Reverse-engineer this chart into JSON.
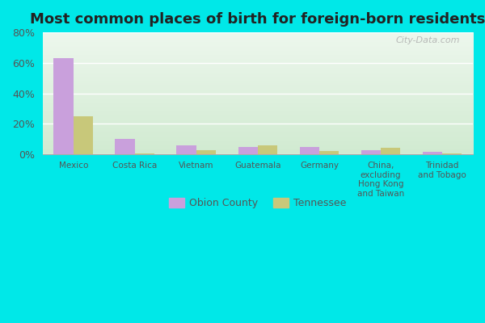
{
  "title": "Most common places of birth for foreign-born residents",
  "categories": [
    "Mexico",
    "Costa Rica",
    "Vietnam",
    "Guatemala",
    "Germany",
    "China,\nexcluding\nHong Kong\nand Taiwan",
    "Trinidad\nand Tobago"
  ],
  "obion_county": [
    63,
    10,
    6,
    5,
    5,
    2.5,
    1.5
  ],
  "tennessee": [
    25,
    0.5,
    2.5,
    6,
    2,
    4.5,
    0.5
  ],
  "obion_color": "#c9a0dc",
  "tennessee_color": "#c8c87a",
  "ylim": [
    0,
    80
  ],
  "yticks": [
    0,
    20,
    40,
    60,
    80
  ],
  "ytick_labels": [
    "0%",
    "20%",
    "40%",
    "60%",
    "80%"
  ],
  "fig_bg_color": "#00e8e8",
  "title_fontsize": 13,
  "legend_labels": [
    "Obion County",
    "Tennessee"
  ],
  "watermark": "City-Data.com",
  "bar_width": 0.32
}
